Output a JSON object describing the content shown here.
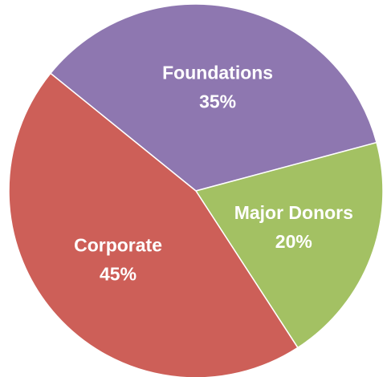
{
  "chart_data": {
    "type": "pie",
    "categories": [
      "Foundations",
      "Major Donors",
      "Corporate"
    ],
    "values": [
      35,
      20,
      45
    ],
    "value_labels": [
      "35%",
      "20%",
      "45%"
    ],
    "colors": [
      "#8e77b0",
      "#a3c163",
      "#cd5f58"
    ]
  }
}
